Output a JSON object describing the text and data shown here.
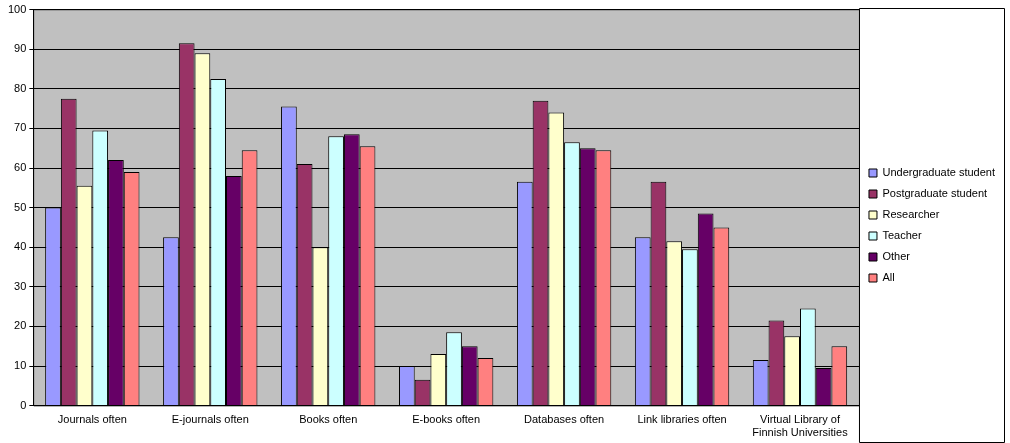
{
  "chart_data": {
    "type": "bar",
    "categories": [
      "Journals often",
      "E-journals often",
      "Books often",
      "E-books often",
      "Databases often",
      "Link libraries often",
      "Virtual Library of Finnish Universities"
    ],
    "series": [
      {
        "name": "Undergraduate student",
        "color": "#9999ff",
        "values": [
          50,
          42.5,
          75.5,
          10,
          56.5,
          42.5,
          11.5
        ]
      },
      {
        "name": "Postgraduate student",
        "color": "#993366",
        "values": [
          77.5,
          91.5,
          61,
          6.5,
          77,
          56.5,
          21.5
        ]
      },
      {
        "name": "Researcher",
        "color": "#ffffcc",
        "values": [
          55.5,
          89,
          40,
          13,
          74,
          41.5,
          17.5
        ]
      },
      {
        "name": "Teacher",
        "color": "#ccffff",
        "values": [
          69.5,
          82.5,
          68,
          18.5,
          66.5,
          39.5,
          24.5
        ]
      },
      {
        "name": "Other",
        "color": "#660066",
        "values": [
          62,
          58,
          68.5,
          15,
          65,
          48.5,
          9.5
        ]
      },
      {
        "name": "All",
        "color": "#ff8080",
        "values": [
          59,
          64.5,
          65.5,
          12,
          64.5,
          45,
          15
        ]
      }
    ],
    "ylim": [
      0,
      100
    ],
    "yticks": [
      0,
      10,
      20,
      30,
      40,
      50,
      60,
      70,
      80,
      90,
      100
    ],
    "grid": "y",
    "legend": "right"
  }
}
